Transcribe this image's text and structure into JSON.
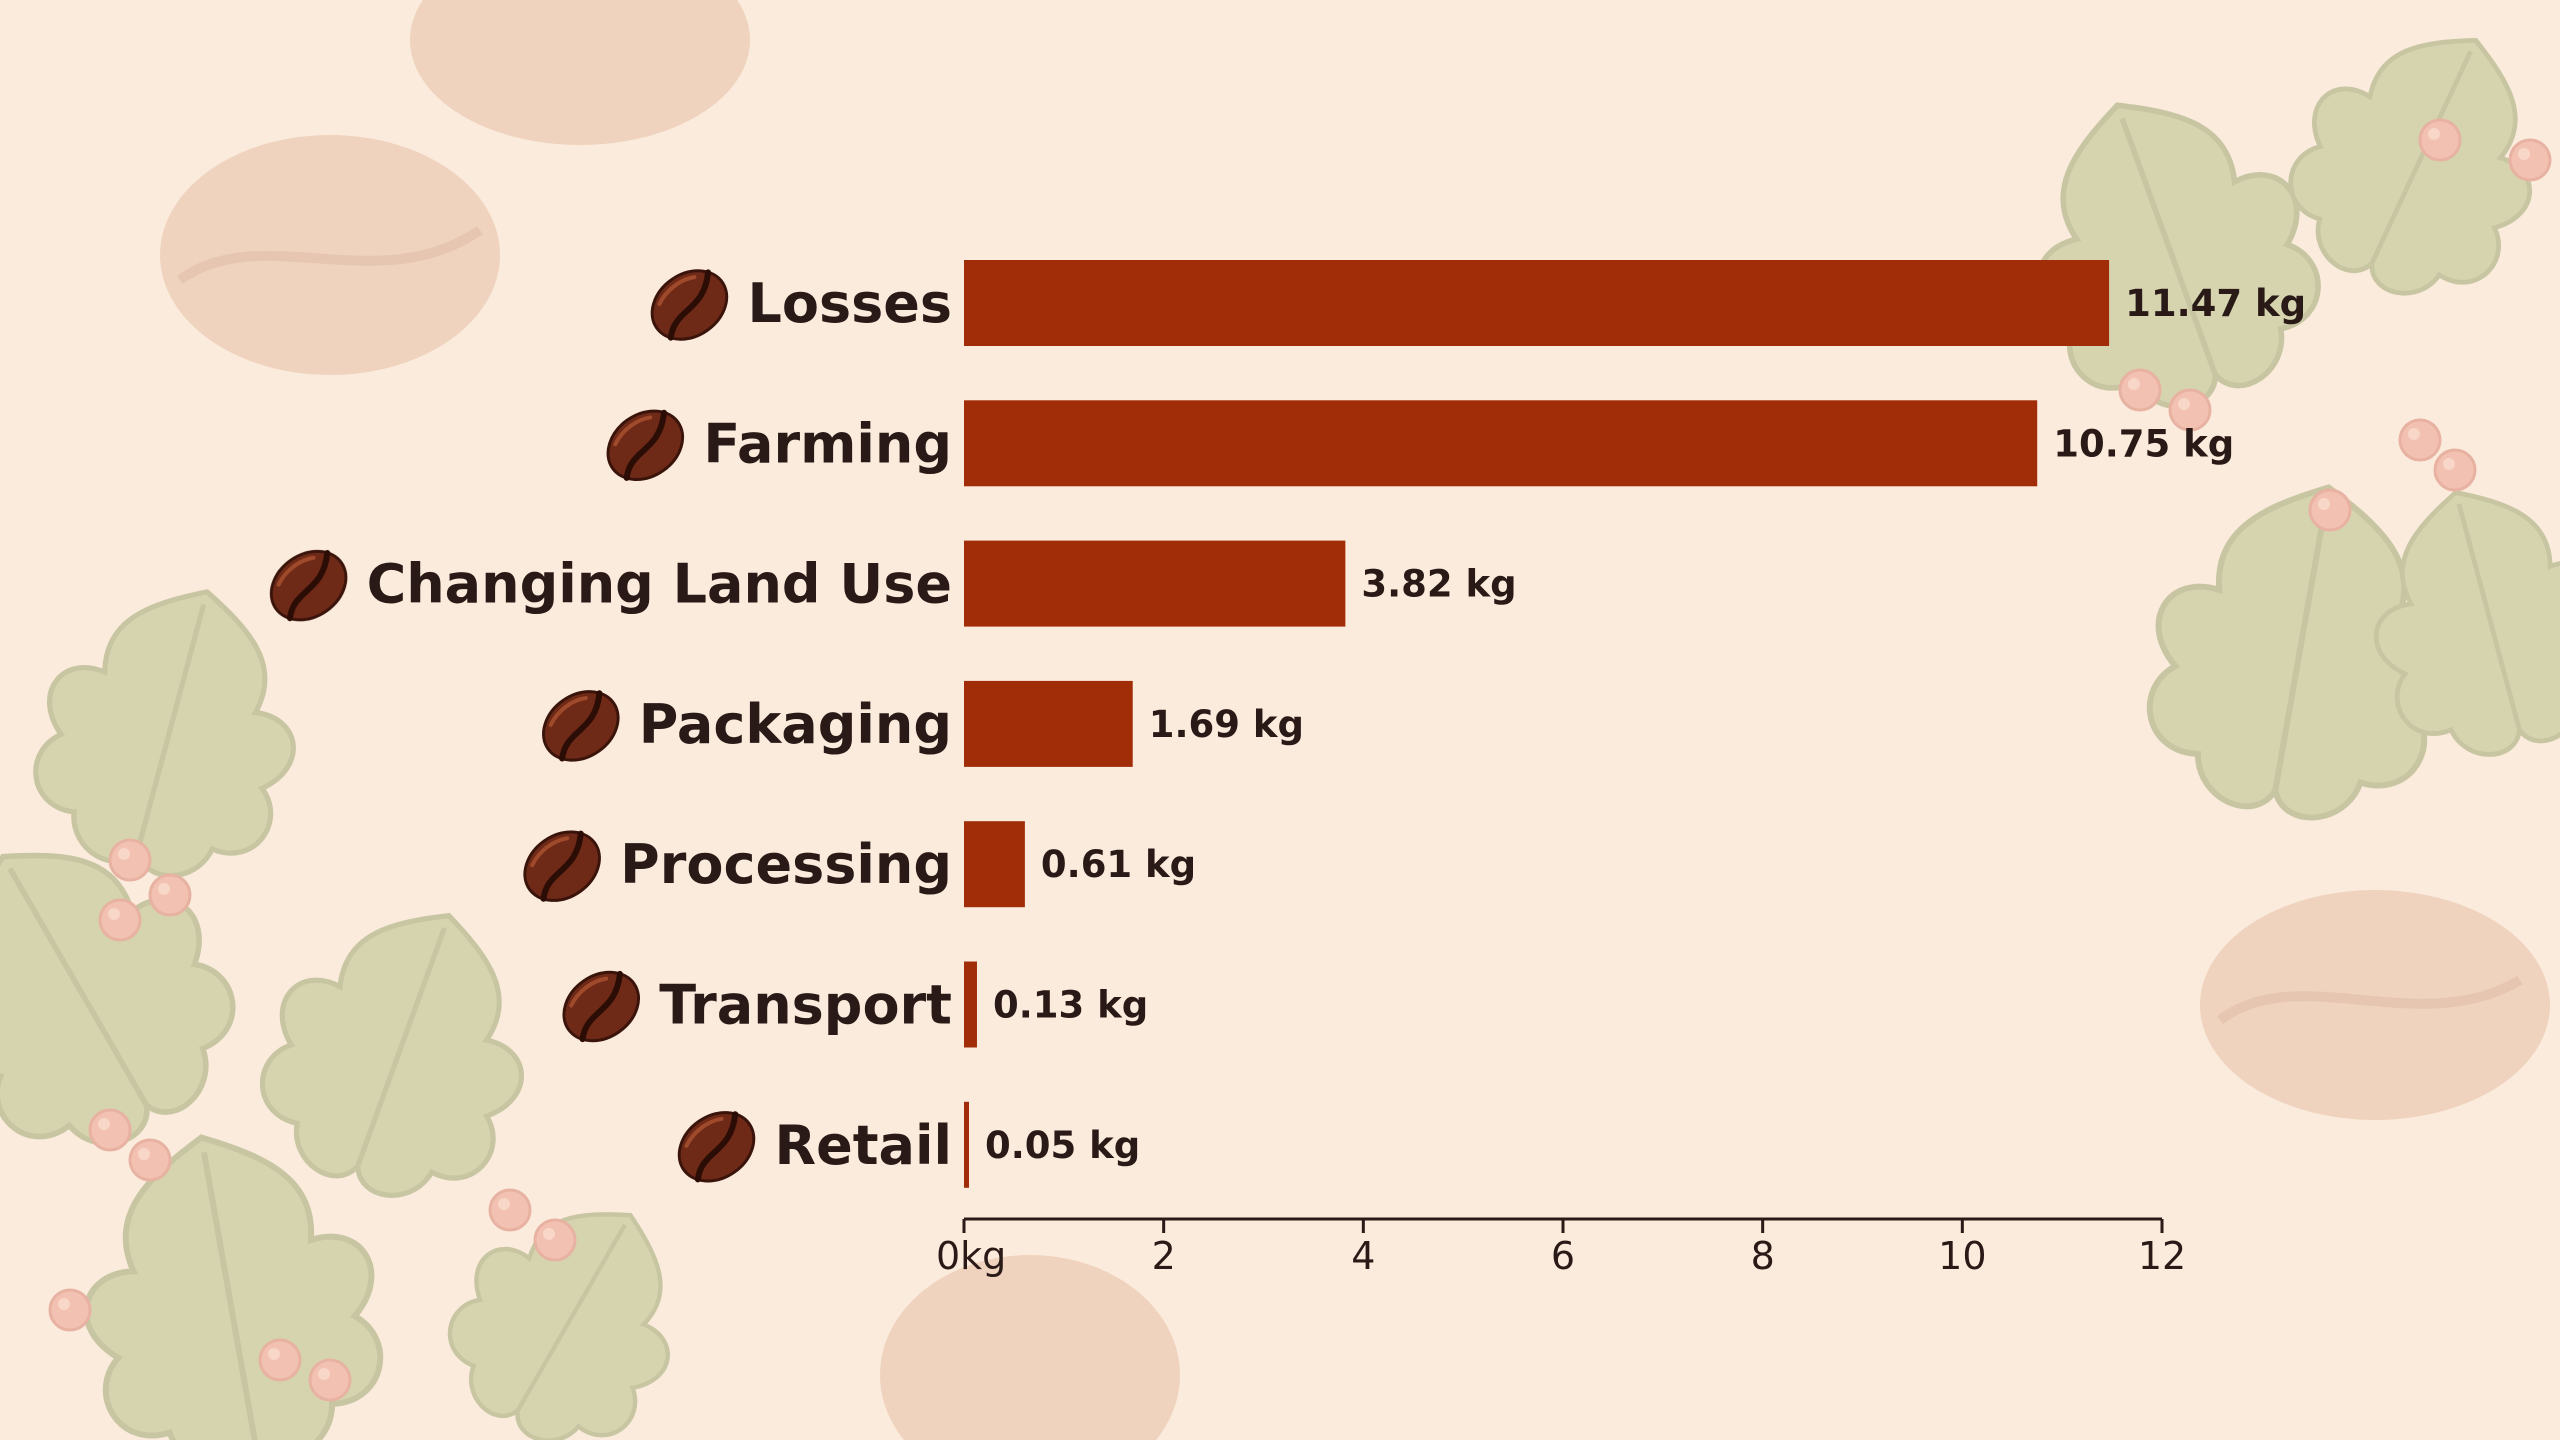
{
  "chart_data": {
    "type": "bar",
    "orientation": "horizontal",
    "categories": [
      "Losses",
      "Farming",
      "Changing Land Use",
      "Packaging",
      "Processing",
      "Transport",
      "Retail"
    ],
    "values": [
      11.47,
      10.75,
      3.82,
      1.69,
      0.61,
      0.13,
      0.05
    ],
    "value_labels": [
      "11.47 kg",
      "10.75 kg",
      "3.82 kg",
      "1.69 kg",
      "0.61 kg",
      "0.13 kg",
      "0.05 kg"
    ],
    "xlim": [
      0,
      12
    ],
    "x_ticks": [
      0,
      2,
      4,
      6,
      8,
      10,
      12
    ],
    "x_tick_labels": [
      "0kg",
      "2",
      "4",
      "6",
      "8",
      "10",
      "12"
    ],
    "title": "",
    "xlabel": "",
    "ylabel": "",
    "grid": false,
    "legend": "none",
    "bar_color": "#a12d08",
    "category_icon": "coffee-bean-icon"
  },
  "background": {
    "color": "#fbebdc",
    "decoration": [
      "coffee-bean-icon",
      "coffee-leaf-icon",
      "coffee-cherry-icon"
    ]
  }
}
